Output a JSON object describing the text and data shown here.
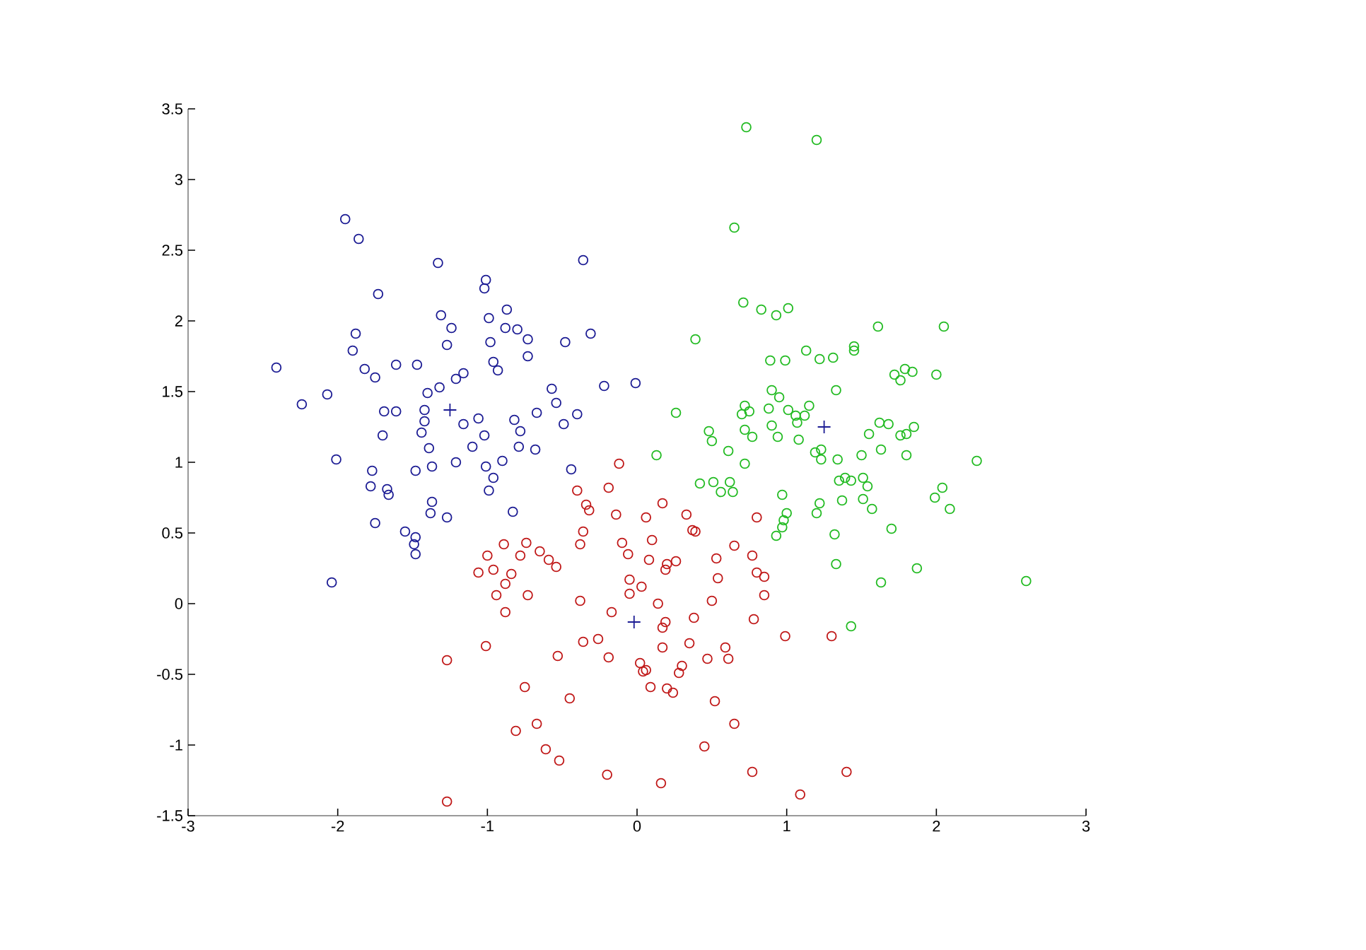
{
  "chart_data": {
    "type": "scatter",
    "marker": "circle",
    "grid": false,
    "xlim": [
      -3,
      3
    ],
    "ylim": [
      -1.5,
      3.5
    ],
    "xticks": [
      -3,
      -2,
      -1,
      0,
      1,
      2,
      3
    ],
    "yticks": [
      -1.5,
      -1,
      -0.5,
      0,
      0.5,
      1,
      1.5,
      2,
      2.5,
      3,
      3.5
    ],
    "series": [
      {
        "color": "#1c1c94",
        "x": [
          -2.41,
          -2.24,
          -2.07,
          -2.01,
          -1.95,
          -1.86,
          -1.88,
          -1.9,
          -1.82,
          -1.73,
          -1.75,
          -1.61,
          -1.69,
          -1.61,
          -1.77,
          -1.78,
          -1.67,
          -1.66,
          -1.75,
          -1.7,
          -1.47,
          -1.55,
          -1.48,
          -1.48,
          -1.49,
          -2.04,
          -1.4,
          -1.42,
          -1.42,
          -1.44,
          -1.48,
          -1.33,
          -1.31,
          -1.24,
          -1.21,
          -1.27,
          -1.32,
          -1.39,
          -1.37,
          -1.37,
          -1.38,
          -1.27,
          -1.21,
          -1.16,
          -1.16,
          -1.1,
          -1.02,
          -1.01,
          -1.02,
          -0.99,
          -0.98,
          -0.96,
          -0.93,
          -0.87,
          -0.8,
          -0.73,
          -0.73,
          -1.01,
          -0.96,
          -0.99,
          -0.9,
          -0.82,
          -0.83,
          -0.79,
          -0.68,
          -0.67,
          -0.78,
          -0.57,
          -0.49,
          -0.4,
          -0.48,
          -0.44,
          -0.36,
          -0.31,
          -0.22,
          -0.01,
          -0.54,
          -0.88,
          -1.06
        ],
        "values": [
          1.67,
          1.41,
          1.48,
          1.02,
          2.72,
          2.58,
          1.91,
          1.79,
          1.66,
          2.19,
          1.6,
          1.69,
          1.36,
          1.36,
          0.94,
          0.83,
          0.81,
          0.77,
          0.57,
          1.19,
          1.69,
          0.51,
          0.47,
          0.35,
          0.42,
          0.15,
          1.49,
          1.37,
          1.29,
          1.21,
          0.94,
          2.41,
          2.04,
          1.95,
          1.59,
          1.83,
          1.53,
          1.1,
          0.97,
          0.72,
          0.64,
          0.61,
          1.0,
          1.27,
          1.63,
          1.11,
          1.19,
          2.29,
          2.23,
          2.02,
          1.85,
          1.71,
          1.65,
          2.08,
          1.94,
          1.87,
          1.75,
          0.97,
          0.89,
          0.8,
          1.01,
          1.3,
          0.65,
          1.11,
          1.09,
          1.35,
          1.22,
          1.52,
          1.27,
          1.34,
          1.85,
          0.95,
          2.43,
          1.91,
          1.54,
          1.56,
          1.42,
          1.95,
          1.31
        ]
      },
      {
        "color": "#c01818",
        "x": [
          -1.27,
          -1.27,
          -1.01,
          -1.0,
          -1.06,
          -0.96,
          -0.89,
          -0.78,
          -0.74,
          -0.65,
          -0.59,
          -0.54,
          -0.88,
          -0.84,
          -0.94,
          -0.73,
          -0.88,
          -0.81,
          -0.75,
          -0.67,
          -0.61,
          -0.52,
          -0.53,
          -0.45,
          -0.36,
          -0.34,
          -0.32,
          -0.38,
          -0.38,
          -0.26,
          -0.36,
          -0.4,
          -0.17,
          -0.19,
          -0.2,
          -0.12,
          -0.14,
          -0.1,
          -0.06,
          -0.05,
          -0.05,
          0.06,
          0.17,
          0.1,
          0.08,
          0.2,
          0.19,
          0.33,
          0.37,
          0.39,
          0.26,
          0.14,
          0.03,
          0.19,
          0.17,
          0.17,
          0.35,
          0.02,
          0.06,
          0.04,
          0.09,
          0.2,
          0.24,
          0.28,
          0.3,
          0.47,
          0.59,
          0.61,
          0.52,
          0.65,
          0.77,
          0.16,
          0.45,
          0.38,
          0.53,
          0.54,
          0.5,
          0.8,
          0.85,
          0.77,
          0.85,
          0.8,
          0.99,
          0.78,
          1.09,
          1.4,
          1.3,
          0.65,
          -0.19
        ],
        "values": [
          -1.4,
          -0.4,
          -0.3,
          0.34,
          0.22,
          0.24,
          0.42,
          0.34,
          0.43,
          0.37,
          0.31,
          0.26,
          0.14,
          0.21,
          0.06,
          0.06,
          -0.06,
          -0.9,
          -0.59,
          -0.85,
          -1.03,
          -1.11,
          -0.37,
          -0.67,
          0.51,
          0.7,
          0.66,
          0.42,
          0.02,
          -0.25,
          -0.27,
          0.8,
          -0.06,
          -0.38,
          -1.21,
          0.99,
          0.63,
          0.43,
          0.35,
          0.17,
          0.07,
          0.61,
          0.71,
          0.45,
          0.31,
          0.28,
          0.24,
          0.63,
          0.52,
          0.51,
          0.3,
          0.0,
          0.12,
          -0.13,
          -0.17,
          -0.31,
          -0.28,
          -0.42,
          -0.47,
          -0.48,
          -0.59,
          -0.6,
          -0.63,
          -0.49,
          -0.44,
          -0.39,
          -0.31,
          -0.39,
          -0.69,
          -0.85,
          -1.19,
          -1.27,
          -1.01,
          -0.1,
          0.32,
          0.18,
          0.02,
          0.22,
          0.06,
          0.34,
          0.19,
          0.61,
          -0.23,
          -0.11,
          -1.35,
          -1.19,
          -0.23,
          0.41,
          0.82
        ]
      },
      {
        "color": "#22bb22",
        "x": [
          0.73,
          1.2,
          0.65,
          0.71,
          0.83,
          0.93,
          1.01,
          0.39,
          1.61,
          2.05,
          0.89,
          0.99,
          1.13,
          1.22,
          1.31,
          1.45,
          1.45,
          1.72,
          1.79,
          1.84,
          2.0,
          1.76,
          1.33,
          0.9,
          0.95,
          0.72,
          0.7,
          0.75,
          0.88,
          1.01,
          1.06,
          1.15,
          1.12,
          1.07,
          0.9,
          0.72,
          0.77,
          0.94,
          1.08,
          0.26,
          0.48,
          0.5,
          0.61,
          0.72,
          0.13,
          0.42,
          0.51,
          0.56,
          0.64,
          0.62,
          0.97,
          1.19,
          1.23,
          1.23,
          1.34,
          1.35,
          1.39,
          1.43,
          1.51,
          1.37,
          1.51,
          1.57,
          1.32,
          1.7,
          1.55,
          1.62,
          1.68,
          1.63,
          1.76,
          1.8,
          1.8,
          1.85,
          1.5,
          1.0,
          0.98,
          0.93,
          0.97,
          1.22,
          1.2,
          1.54,
          2.04,
          1.99,
          2.09,
          2.27,
          1.87,
          1.63,
          2.6,
          1.43,
          1.33
        ],
        "values": [
          3.37,
          3.28,
          2.66,
          2.13,
          2.08,
          2.04,
          2.09,
          1.87,
          1.96,
          1.96,
          1.72,
          1.72,
          1.79,
          1.73,
          1.74,
          1.82,
          1.79,
          1.62,
          1.66,
          1.64,
          1.62,
          1.58,
          1.51,
          1.51,
          1.46,
          1.4,
          1.34,
          1.36,
          1.38,
          1.37,
          1.33,
          1.4,
          1.33,
          1.28,
          1.26,
          1.23,
          1.18,
          1.18,
          1.16,
          1.35,
          1.22,
          1.15,
          1.08,
          0.99,
          1.05,
          0.85,
          0.86,
          0.79,
          0.79,
          0.86,
          0.77,
          1.07,
          1.09,
          1.02,
          1.02,
          0.87,
          0.89,
          0.87,
          0.89,
          0.73,
          0.74,
          0.67,
          0.49,
          0.53,
          1.2,
          1.28,
          1.27,
          1.09,
          1.19,
          1.05,
          1.2,
          1.25,
          1.05,
          0.64,
          0.59,
          0.48,
          0.54,
          0.71,
          0.64,
          0.83,
          0.82,
          0.75,
          0.67,
          1.01,
          0.25,
          0.15,
          0.16,
          -0.16,
          0.28
        ]
      },
      {
        "color": "#1c1c94",
        "marker": "cross",
        "x": [
          -1.25,
          -0.02,
          1.25
        ],
        "values": [
          1.37,
          -0.13,
          1.25
        ]
      }
    ]
  }
}
